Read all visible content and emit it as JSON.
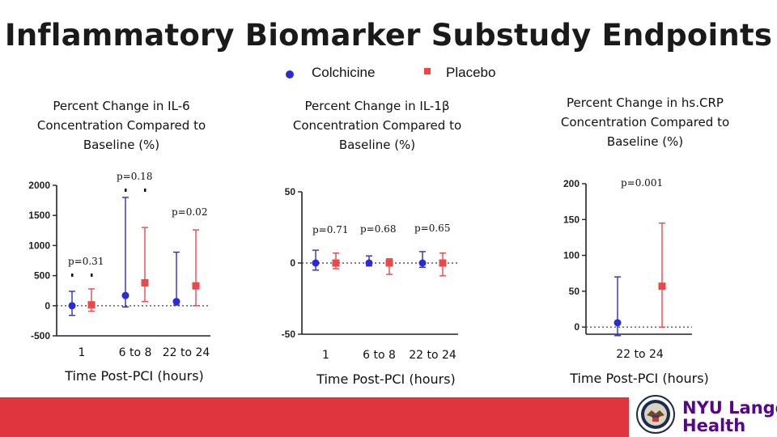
{
  "title": "Inflammatory Biomarker Substudy Endpoints",
  "legend": {
    "colchicine_label": "Colchicine",
    "placebo_label": "Placebo",
    "colchicine_color": "#2b2bd6",
    "placebo_color": "#ec4848"
  },
  "footer": {
    "band_color": "#e0343f",
    "logo_line1": "NYU Langone",
    "logo_line2": "Health",
    "seal_icon": "va-seal-icon"
  },
  "chart_data": [
    {
      "type": "scatter",
      "title_lines": [
        "Percent Change in IL-6",
        "Concentration Compared to",
        "Baseline (%)"
      ],
      "xlabel": "Time Post-PCI (hours)",
      "ylabel": "",
      "ylim": [
        -500,
        2000
      ],
      "yticks": [
        2000,
        1500,
        1000,
        500,
        0,
        -500
      ],
      "y_tick_labels": [
        "2000",
        "1500",
        "1000",
        "500",
        "0",
        "-500"
      ],
      "categories": [
        "1",
        "6 to 8",
        "22 to 24"
      ],
      "reference_line": 0,
      "series": [
        {
          "name": "Colchicine",
          "points": [
            {
              "cat": 0,
              "value": 0,
              "low": -160,
              "high": 240
            },
            {
              "cat": 1,
              "value": 170,
              "low": -20,
              "high": 1800
            },
            {
              "cat": 2,
              "value": 70,
              "low": 10,
              "high": 890
            }
          ]
        },
        {
          "name": "Placebo",
          "points": [
            {
              "cat": 0,
              "value": 15,
              "low": -90,
              "high": 280
            },
            {
              "cat": 1,
              "value": 380,
              "low": 70,
              "high": 1300
            },
            {
              "cat": 2,
              "value": 330,
              "low": 0,
              "high": 1260
            }
          ]
        }
      ],
      "annotations": [
        {
          "text": "p=0.31",
          "cat": 0,
          "marker": "dots"
        },
        {
          "text": "p=0.18",
          "cat": 1,
          "marker": "dots"
        },
        {
          "text": "p=0.02",
          "cat": 2,
          "marker": "none"
        }
      ]
    },
    {
      "type": "scatter",
      "title_lines": [
        "Percent Change in IL-1β",
        "Concentration Compared to",
        "Baseline (%)"
      ],
      "xlabel": "Time Post-PCI (hours)",
      "ylabel": "",
      "ylim": [
        -50,
        50
      ],
      "yticks": [
        50,
        0,
        -50
      ],
      "y_tick_labels": [
        "50",
        "0",
        "-50"
      ],
      "categories": [
        "1",
        "6 to 8",
        "22 to 24"
      ],
      "reference_line": 0,
      "series": [
        {
          "name": "Colchicine",
          "points": [
            {
              "cat": 0,
              "value": 0,
              "low": -5,
              "high": 9
            },
            {
              "cat": 1,
              "value": 0,
              "low": -2,
              "high": 5
            },
            {
              "cat": 2,
              "value": 0,
              "low": -3,
              "high": 8
            }
          ]
        },
        {
          "name": "Placebo",
          "points": [
            {
              "cat": 0,
              "value": 0,
              "low": -4,
              "high": 7
            },
            {
              "cat": 1,
              "value": 0,
              "low": -8,
              "high": 3
            },
            {
              "cat": 2,
              "value": 0,
              "low": -9,
              "high": 7
            }
          ]
        }
      ],
      "annotations": [
        {
          "text": "p=0.71",
          "cat": 0,
          "marker": "none"
        },
        {
          "text": "p=0.68",
          "cat": 1,
          "marker": "none"
        },
        {
          "text": "p=0.65",
          "cat": 2,
          "marker": "none"
        }
      ]
    },
    {
      "type": "scatter",
      "title_lines": [
        "Percent Change in hs.CRP",
        "Concentration Compared to",
        "Baseline (%)"
      ],
      "xlabel": "Time Post-PCI (hours)",
      "ylabel": "",
      "ylim": [
        -10,
        200
      ],
      "yticks": [
        200,
        150,
        100,
        50,
        0
      ],
      "y_tick_labels": [
        "200",
        "150",
        "100",
        "50",
        "0"
      ],
      "categories": [
        "22 to 24"
      ],
      "reference_line": 0,
      "series": [
        {
          "name": "Colchicine",
          "points": [
            {
              "cat": 0,
              "value": 6,
              "low": -12,
              "high": 70
            }
          ]
        },
        {
          "name": "Placebo",
          "points": [
            {
              "cat": 0,
              "value": 57,
              "low": 0,
              "high": 145
            }
          ]
        }
      ],
      "annotations": [
        {
          "text": "p=0.001",
          "cat": 0,
          "marker": "none"
        }
      ]
    }
  ]
}
